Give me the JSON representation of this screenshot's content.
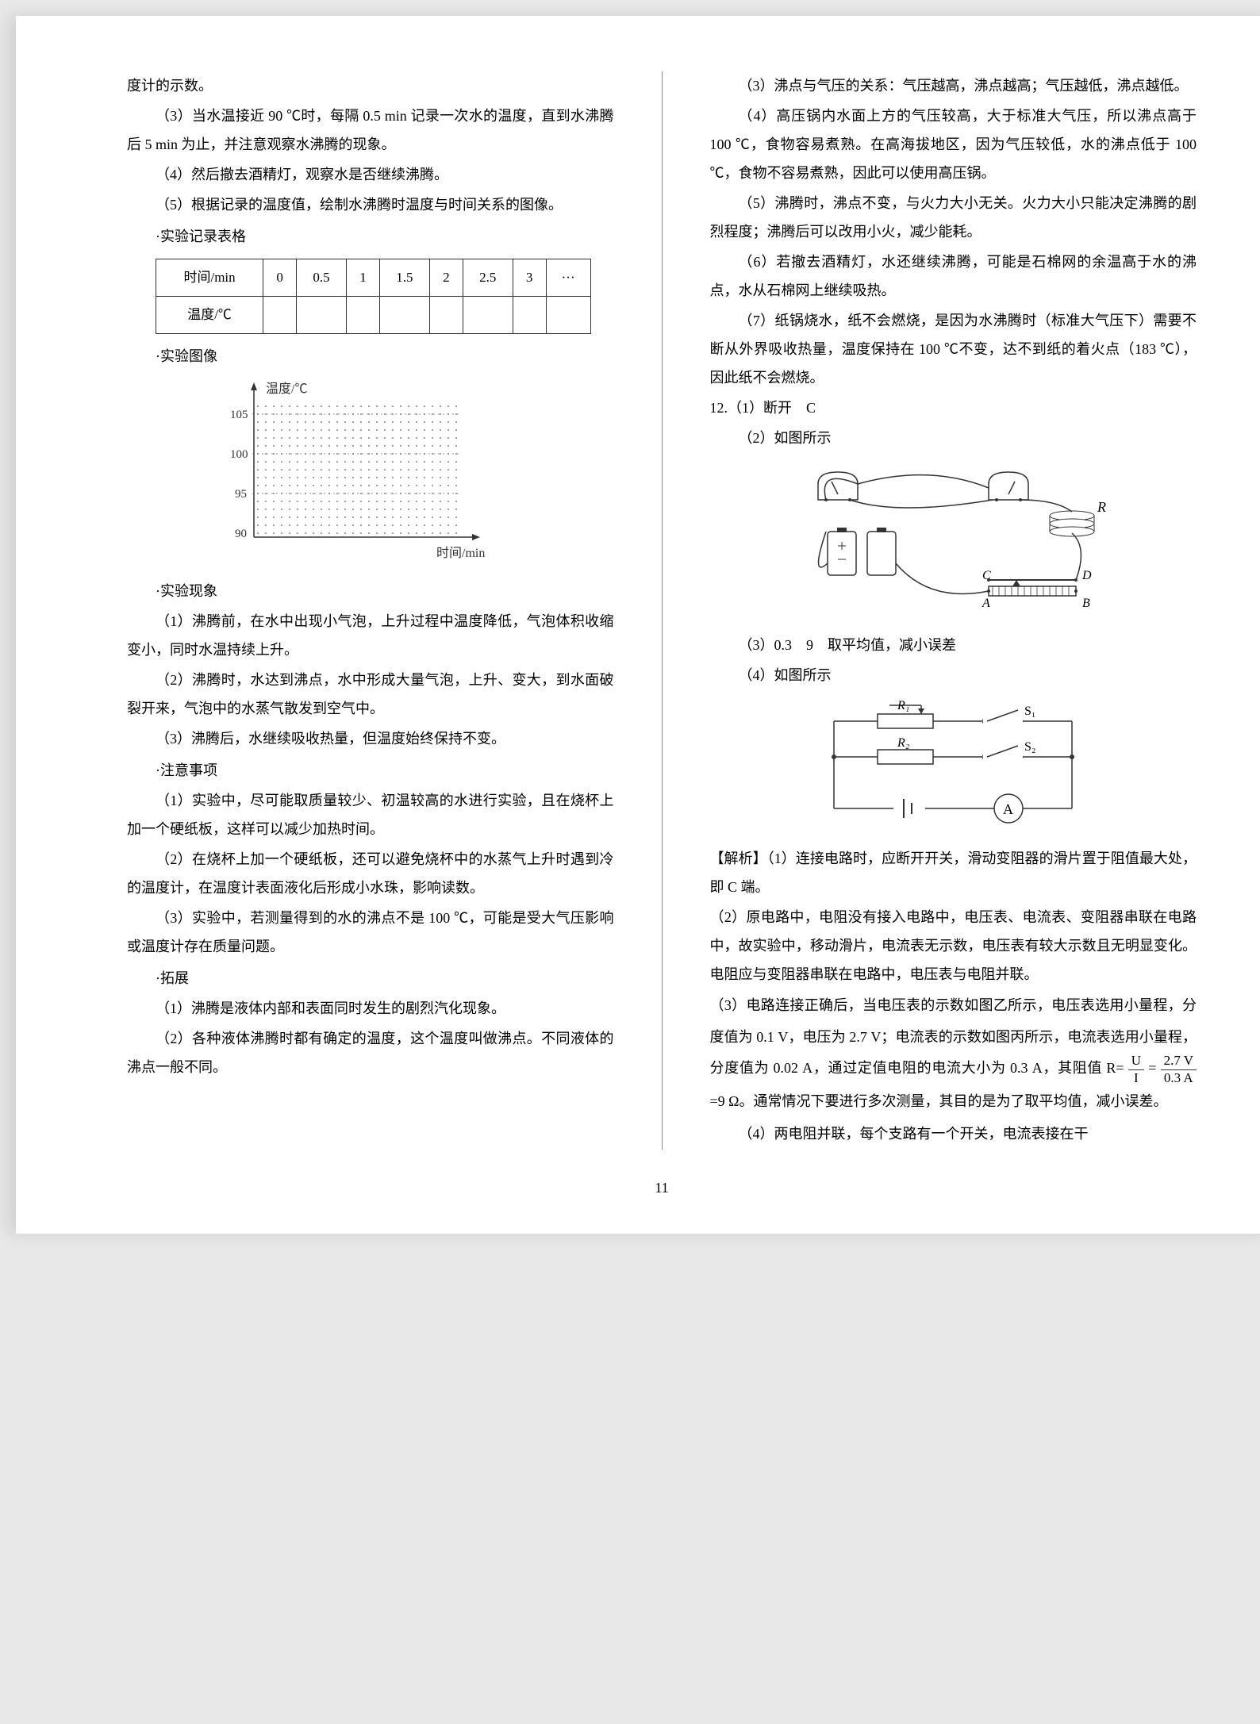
{
  "left_col": {
    "p_top": "度计的示数。",
    "p3": "（3）当水温接近 90 ℃时，每隔 0.5 min 记录一次水的温度，直到水沸腾后 5 min 为止，并注意观察水沸腾的现象。",
    "p4": "（4）然后撤去酒精灯，观察水是否继续沸腾。",
    "p5": "（5）根据记录的温度值，绘制水沸腾时温度与时间关系的图像。",
    "sec_table": "·实验记录表格",
    "table": {
      "row1": [
        "时间/min",
        "0",
        "0.5",
        "1",
        "1.5",
        "2",
        "2.5",
        "3",
        "···"
      ],
      "row2": [
        "温度/℃",
        "",
        "",
        "",
        "",
        "",
        "",
        "",
        ""
      ]
    },
    "sec_chart": "·实验图像",
    "chart": {
      "ylabel": "温度/℃",
      "xlabel": "时间/min",
      "yticks": [
        "105",
        "100",
        "95",
        "90"
      ],
      "ylim": [
        90,
        105
      ],
      "grid_color": "#333",
      "axis_color": "#333"
    },
    "sec_phenom": "·实验现象",
    "ph1": "（1）沸腾前，在水中出现小气泡，上升过程中温度降低，气泡体积收缩变小，同时水温持续上升。",
    "ph2": "（2）沸腾时，水达到沸点，水中形成大量气泡，上升、变大，到水面破裂开来，气泡中的水蒸气散发到空气中。",
    "ph3": "（3）沸腾后，水继续吸收热量，但温度始终保持不变。",
    "sec_notes": "·注意事项",
    "n1": "（1）实验中，尽可能取质量较少、初温较高的水进行实验，且在烧杯上加一个硬纸板，这样可以减少加热时间。",
    "n2": "（2）在烧杯上加一个硬纸板，还可以避免烧杯中的水蒸气上升时遇到冷的温度计，在温度计表面液化后形成小水珠，影响读数。",
    "n3": "（3）实验中，若测量得到的水的沸点不是 100 ℃，可能是受大气压影响或温度计存在质量问题。",
    "sec_ext": "·拓展",
    "e1": "（1）沸腾是液体内部和表面同时发生的剧烈汽化现象。",
    "e2": "（2）各种液体沸腾时都有确定的温度，这个温度叫做沸点。不同液体的沸点一般不同。"
  },
  "right_col": {
    "r3": "（3）沸点与气压的关系：气压越高，沸点越高；气压越低，沸点越低。",
    "r4": "（4）高压锅内水面上方的气压较高，大于标准大气压，所以沸点高于 100 ℃，食物容易煮熟。在高海拔地区，因为气压较低，水的沸点低于 100 ℃，食物不容易煮熟，因此可以使用高压锅。",
    "r5": "（5）沸腾时，沸点不变，与火力大小无关。火力大小只能决定沸腾的剧烈程度；沸腾后可以改用小火，减少能耗。",
    "r6": "（6）若撤去酒精灯，水还继续沸腾，可能是石棉网的余温高于水的沸点，水从石棉网上继续吸热。",
    "r7": "（7）纸锅烧水，纸不会燃烧，是因为水沸腾时（标准大气压下）需要不断从外界吸收热量，温度保持在 100 ℃不变，达不到纸的着火点（183 ℃），因此纸不会燃烧。",
    "q12_1": "12.（1）断开　C",
    "q12_2": "（2）如图所示",
    "circuit1_labels": {
      "R": "R",
      "C": "C",
      "D": "D",
      "A": "A",
      "B": "B"
    },
    "q12_3": "（3）0.3　9　取平均值，减小误差",
    "q12_4": "（4）如图所示",
    "circuit2_labels": {
      "R1": "R₁",
      "R2": "R₂",
      "S1": "S₁",
      "S2": "S₂",
      "A": "A"
    },
    "analysis_label": "【解析】",
    "a1": "（1）连接电路时，应断开开关，滑动变阻器的滑片置于阻值最大处，即 C 端。",
    "a2": "（2）原电路中，电阻没有接入电路中，电压表、电流表、变阻器串联在电路中，故实验中，移动滑片，电流表无示数，电压表有较大示数且无明显变化。电阻应与变阻器串联在电路中，电压表与电阻并联。",
    "a3_pre": "（3）电路连接正确后，当电压表的示数如图乙所示，电压表选用小量程，分度值为 0.1 V，电压为 2.7 V；电流表的示数如图丙所示，电流表选用小量程，分度值为 0.02 A，通过定值电阻的电流大小为 0.3 A，其阻值 R=",
    "a3_frac_U": "U",
    "a3_frac_I": "I",
    "a3_eq": "=",
    "a3_frac_num": "2.7 V",
    "a3_frac_den": "0.3 A",
    "a3_post": "=9 Ω。通常情况下要进行多次测量，其目的是为了取平均值，减小误差。",
    "a4": "（4）两电阻并联，每个支路有一个开关，电流表接在干"
  },
  "page_number": "11"
}
